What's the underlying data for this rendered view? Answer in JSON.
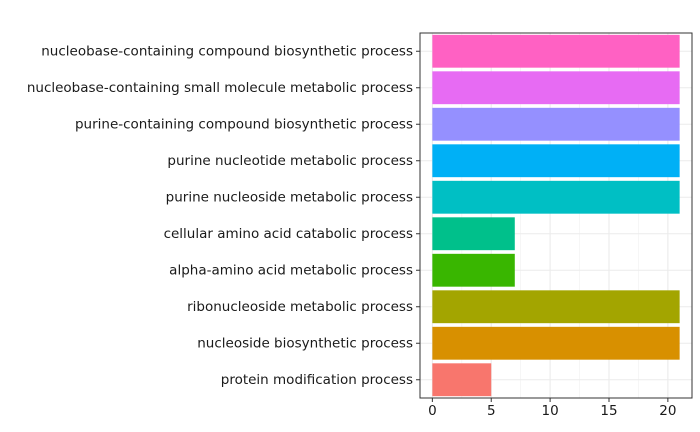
{
  "chart_data": {
    "type": "bar",
    "orientation": "horizontal",
    "categories": [
      "nucleobase-containing compound biosynthetic process",
      "nucleobase-containing small molecule metabolic process",
      "purine-containing compound biosynthetic process",
      "purine nucleotide metabolic process",
      "purine nucleoside metabolic process",
      "cellular amino acid catabolic process",
      "alpha-amino acid metabolic process",
      "ribonucleoside metabolic process",
      "nucleoside biosynthetic process",
      "protein modification process"
    ],
    "values": [
      21,
      21,
      21,
      21,
      21,
      7,
      7,
      21,
      21,
      5
    ],
    "colors": [
      "#FF61C3",
      "#E76BF3",
      "#9590FF",
      "#00B0F6",
      "#00BFC4",
      "#00C08B",
      "#39B600",
      "#A3A500",
      "#D89000",
      "#F8766D"
    ],
    "xlim": [
      -1.05,
      22.05
    ],
    "xticks": [
      0,
      5,
      10,
      15,
      20
    ],
    "xtick_labels": [
      "0",
      "5",
      "10",
      "15",
      "20"
    ],
    "title": "",
    "xlabel": "",
    "ylabel": "",
    "grid": true,
    "legend": "none"
  }
}
